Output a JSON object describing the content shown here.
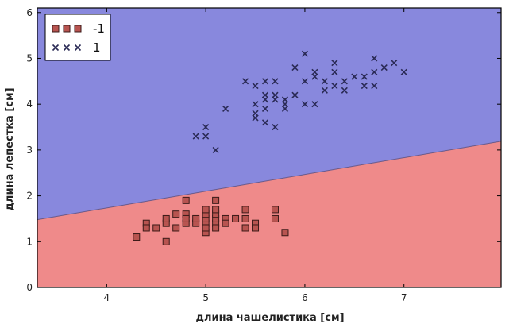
{
  "chart_data": {
    "type": "scatter",
    "title": "",
    "xlabel": "длина чашелистика [см]",
    "ylabel": "длина лепестка [см]",
    "xlim": [
      3.3,
      7.98
    ],
    "ylim": [
      0,
      6.1
    ],
    "xticks": [
      "4",
      "5",
      "6",
      "7"
    ],
    "yticks": [
      "0",
      "1",
      "2",
      "3",
      "4",
      "5",
      "6"
    ],
    "grid": false,
    "legend_position": "top-left",
    "decision_boundary": {
      "x": [
        3.3,
        7.98
      ],
      "y": [
        1.48,
        3.19
      ]
    },
    "regions": [
      {
        "label": "-1",
        "color": "#ef8a8a"
      },
      {
        "label": "1",
        "color": "#8888dd"
      }
    ],
    "series": [
      {
        "name": "-1",
        "marker": "square",
        "color": "#b85450",
        "points": [
          [
            4.3,
            1.1
          ],
          [
            4.4,
            1.4
          ],
          [
            4.4,
            1.3
          ],
          [
            4.5,
            1.3
          ],
          [
            4.6,
            1.4
          ],
          [
            4.6,
            1.5
          ],
          [
            4.6,
            1.0
          ],
          [
            4.7,
            1.3
          ],
          [
            4.7,
            1.6
          ],
          [
            4.8,
            1.4
          ],
          [
            4.8,
            1.6
          ],
          [
            4.8,
            1.9
          ],
          [
            4.8,
            1.5
          ],
          [
            4.9,
            1.4
          ],
          [
            4.9,
            1.5
          ],
          [
            5.0,
            1.4
          ],
          [
            5.0,
            1.5
          ],
          [
            5.0,
            1.6
          ],
          [
            5.0,
            1.2
          ],
          [
            5.0,
            1.3
          ],
          [
            5.0,
            1.7
          ],
          [
            5.1,
            1.4
          ],
          [
            5.1,
            1.5
          ],
          [
            5.1,
            1.6
          ],
          [
            5.1,
            1.7
          ],
          [
            5.1,
            1.9
          ],
          [
            5.1,
            1.3
          ],
          [
            5.2,
            1.5
          ],
          [
            5.2,
            1.4
          ],
          [
            5.3,
            1.5
          ],
          [
            5.4,
            1.7
          ],
          [
            5.4,
            1.5
          ],
          [
            5.4,
            1.3
          ],
          [
            5.5,
            1.4
          ],
          [
            5.5,
            1.3
          ],
          [
            5.7,
            1.7
          ],
          [
            5.7,
            1.5
          ],
          [
            5.8,
            1.2
          ]
        ]
      },
      {
        "name": "1",
        "marker": "x",
        "color": "#2a2a55",
        "points": [
          [
            4.9,
            3.3
          ],
          [
            5.0,
            3.5
          ],
          [
            5.0,
            3.3
          ],
          [
            5.1,
            3.0
          ],
          [
            5.2,
            3.9
          ],
          [
            5.4,
            4.5
          ],
          [
            5.5,
            4.4
          ],
          [
            5.5,
            4.0
          ],
          [
            5.5,
            3.8
          ],
          [
            5.5,
            3.7
          ],
          [
            5.6,
            4.5
          ],
          [
            5.6,
            4.2
          ],
          [
            5.6,
            4.1
          ],
          [
            5.6,
            3.9
          ],
          [
            5.6,
            3.6
          ],
          [
            5.7,
            4.5
          ],
          [
            5.7,
            4.2
          ],
          [
            5.7,
            4.1
          ],
          [
            5.7,
            3.5
          ],
          [
            5.8,
            4.1
          ],
          [
            5.8,
            4.0
          ],
          [
            5.8,
            3.9
          ],
          [
            5.9,
            4.8
          ],
          [
            5.9,
            4.2
          ],
          [
            6.0,
            5.1
          ],
          [
            6.0,
            4.5
          ],
          [
            6.0,
            4.0
          ],
          [
            6.1,
            4.7
          ],
          [
            6.1,
            4.6
          ],
          [
            6.1,
            4.0
          ],
          [
            6.2,
            4.5
          ],
          [
            6.2,
            4.3
          ],
          [
            6.3,
            4.9
          ],
          [
            6.3,
            4.7
          ],
          [
            6.3,
            4.4
          ],
          [
            6.4,
            4.5
          ],
          [
            6.4,
            4.3
          ],
          [
            6.5,
            4.6
          ],
          [
            6.6,
            4.6
          ],
          [
            6.6,
            4.4
          ],
          [
            6.7,
            5.0
          ],
          [
            6.7,
            4.7
          ],
          [
            6.7,
            4.4
          ],
          [
            6.8,
            4.8
          ],
          [
            6.9,
            4.9
          ],
          [
            7.0,
            4.7
          ]
        ]
      }
    ]
  }
}
